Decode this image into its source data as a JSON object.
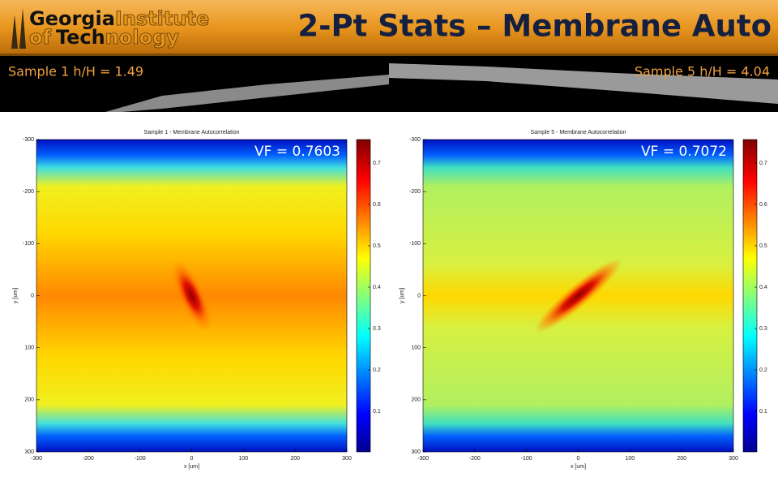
{
  "header": {
    "logo": {
      "georgia": "Georgia",
      "institute": "Institute",
      "of": "of",
      "tech": "Tech",
      "nology": "nology"
    },
    "title": "2-Pt Stats – Membrane Auto"
  },
  "samples": [
    {
      "label": "Sample 1 h/H = 1.49",
      "plot": {
        "title": "Sample 1 - Membrane Autocorrelation",
        "vf": "VF = 0.7603",
        "xlabel": "x [um]",
        "ylabel": "y [um]",
        "xticks": [
          -300,
          -200,
          -100,
          0,
          100,
          200,
          300
        ],
        "yticks": [
          -300,
          -200,
          -100,
          0,
          100,
          200,
          300
        ],
        "colorbar_ticks": [
          0.1,
          0.2,
          0.3,
          0.4,
          0.5,
          0.6,
          0.7
        ]
      }
    },
    {
      "label": "Sample 5 h/H = 4.04",
      "plot": {
        "title": "Sample 5 - Membrane Autocorrelation",
        "vf": "VF = 0.7072",
        "xlabel": "x [um]",
        "ylabel": "y [um]",
        "xticks": [
          -300,
          -200,
          -100,
          0,
          100,
          200,
          300
        ],
        "yticks": [
          -300,
          -200,
          -100,
          0,
          100,
          200,
          300
        ],
        "colorbar_ticks": [
          0.1,
          0.2,
          0.3,
          0.4,
          0.5,
          0.6,
          0.7
        ]
      }
    }
  ]
}
